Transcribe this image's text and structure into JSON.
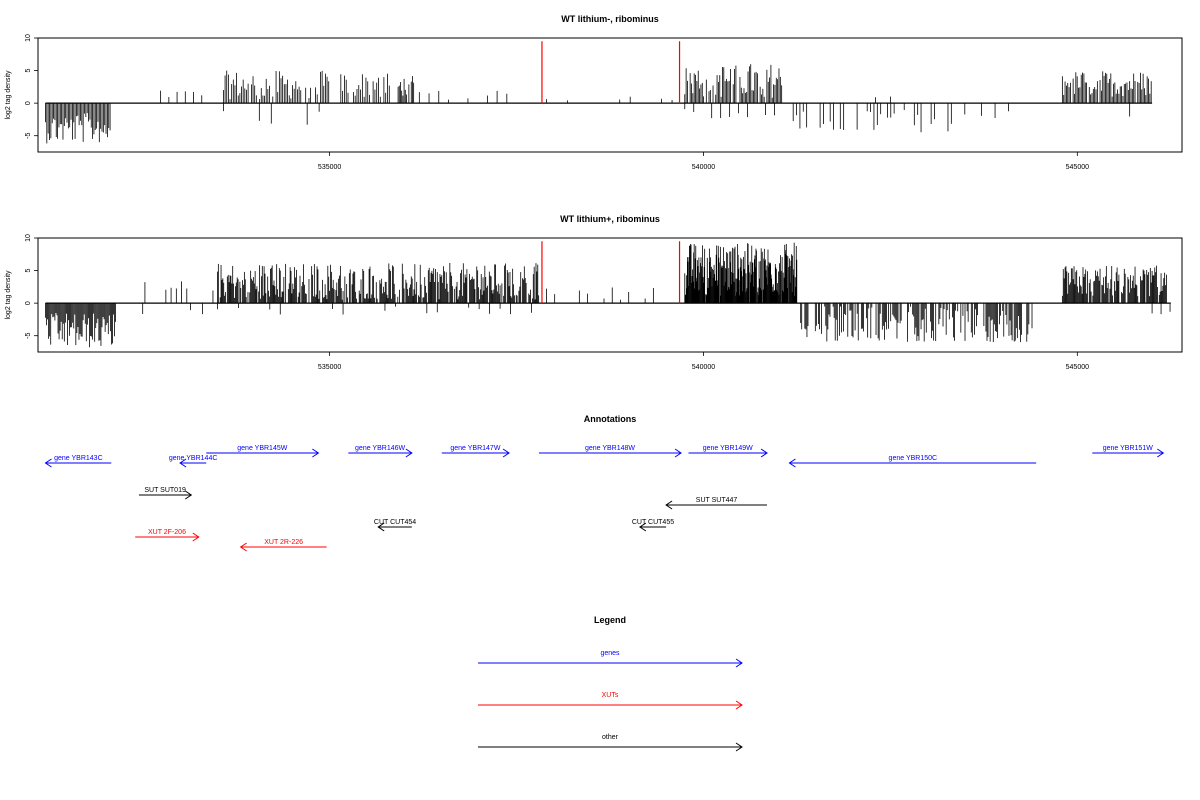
{
  "chart_data": [
    {
      "type": "bar",
      "title": "WT lithium-, ribominus",
      "xlabel": "",
      "ylabel": "log2 tag density",
      "xlim": [
        531100,
        546400
      ],
      "ylim": [
        -7.5,
        10
      ],
      "xticks": [
        535000,
        540000,
        545000
      ],
      "yticks": [
        -5,
        0,
        5,
        10
      ],
      "markers": [
        537840,
        539680
      ],
      "marker_color": "#ff0000",
      "series": [
        {
          "from": 531200,
          "to": 532080,
          "step": 18,
          "min": -6.2,
          "max": -1.5,
          "sign": -1,
          "density": 1.0
        },
        {
          "from": 532300,
          "to": 533300,
          "step": 110,
          "min": 0.6,
          "max": 2.0,
          "sign": 1,
          "density": 0.55
        },
        {
          "from": 533580,
          "to": 535000,
          "step": 22,
          "min": 0.6,
          "max": 5.0,
          "sign": 1,
          "density": 0.85
        },
        {
          "from": 533580,
          "to": 535000,
          "step": 160,
          "min": -3.6,
          "max": -1.0,
          "sign": -1,
          "density": 0.6
        },
        {
          "from": 535150,
          "to": 535800,
          "step": 24,
          "min": 0.8,
          "max": 4.8,
          "sign": 1,
          "density": 0.8
        },
        {
          "from": 535900,
          "to": 536130,
          "step": 16,
          "min": 1.0,
          "max": 4.2,
          "sign": 1,
          "density": 0.9
        },
        {
          "from": 536200,
          "to": 537800,
          "step": 130,
          "min": 0.5,
          "max": 2.0,
          "sign": 1,
          "density": 0.5
        },
        {
          "from": 537900,
          "to": 539650,
          "step": 140,
          "min": 0.4,
          "max": 1.4,
          "sign": 1,
          "density": 0.4
        },
        {
          "from": 539750,
          "to": 541050,
          "step": 18,
          "min": 0.8,
          "max": 6.2,
          "sign": 1,
          "density": 0.85
        },
        {
          "from": 539750,
          "to": 541050,
          "step": 120,
          "min": -2.5,
          "max": -0.8,
          "sign": -1,
          "density": 0.6
        },
        {
          "from": 541200,
          "to": 544200,
          "step": 45,
          "min": -4.5,
          "max": -0.6,
          "sign": -1,
          "density": 0.6
        },
        {
          "from": 542300,
          "to": 542900,
          "step": 200,
          "min": 0.6,
          "max": 1.2,
          "sign": 1,
          "density": 0.5
        },
        {
          "from": 544800,
          "to": 546000,
          "step": 18,
          "min": 1.0,
          "max": 5.0,
          "sign": 1,
          "density": 0.9
        },
        {
          "from": 545700,
          "to": 545900,
          "step": 80,
          "min": -2.8,
          "max": -1.0,
          "sign": -1,
          "density": 0.5
        }
      ]
    },
    {
      "type": "bar",
      "title": "WT lithium+, ribominus",
      "xlabel": "",
      "ylabel": "log2 tag density",
      "xlim": [
        531100,
        546400
      ],
      "ylim": [
        -7.5,
        10
      ],
      "xticks": [
        535000,
        540000,
        545000
      ],
      "yticks": [
        -5,
        0,
        5,
        10
      ],
      "markers": [
        537840,
        539680
      ],
      "marker_color": "#ff0000",
      "series": [
        {
          "from": 531200,
          "to": 532150,
          "step": 14,
          "min": -7.0,
          "max": -1.5,
          "sign": -1,
          "density": 1.0
        },
        {
          "from": 532250,
          "to": 533450,
          "step": 70,
          "min": 0.6,
          "max": 3.5,
          "sign": 1,
          "density": 0.6
        },
        {
          "from": 532500,
          "to": 533300,
          "step": 160,
          "min": -2.2,
          "max": -0.8,
          "sign": -1,
          "density": 0.5
        },
        {
          "from": 533500,
          "to": 537800,
          "step": 12,
          "min": 0.5,
          "max": 6.2,
          "sign": 1,
          "density": 0.85
        },
        {
          "from": 533500,
          "to": 537800,
          "step": 140,
          "min": -2.0,
          "max": -0.5,
          "sign": -1,
          "density": 0.5
        },
        {
          "from": 537900,
          "to": 539600,
          "step": 110,
          "min": 0.5,
          "max": 2.5,
          "sign": 1,
          "density": 0.5
        },
        {
          "from": 539750,
          "to": 541250,
          "step": 7,
          "min": 1.0,
          "max": 9.3,
          "sign": 1,
          "density": 0.95
        },
        {
          "from": 541300,
          "to": 544400,
          "step": 14,
          "min": -6.0,
          "max": -0.5,
          "sign": -1,
          "density": 0.7
        },
        {
          "from": 544800,
          "to": 546200,
          "step": 12,
          "min": 1.0,
          "max": 5.8,
          "sign": 1,
          "density": 0.9
        },
        {
          "from": 546000,
          "to": 546250,
          "step": 120,
          "min": -2.2,
          "max": -1.0,
          "sign": -1,
          "density": 0.6
        }
      ]
    }
  ],
  "annotations": {
    "title": "Annotations",
    "features": [
      {
        "label": "gene YBR143C",
        "start": 532080,
        "end": 531200,
        "type": "gene",
        "row": 2
      },
      {
        "label": "gene YBR144C",
        "start": 533350,
        "end": 533000,
        "type": "gene",
        "row": 2
      },
      {
        "label": "gene YBR145W",
        "start": 533350,
        "end": 534850,
        "type": "gene",
        "row": 1
      },
      {
        "label": "gene YBR146W",
        "start": 535250,
        "end": 536100,
        "type": "gene",
        "row": 1
      },
      {
        "label": "gene YBR147W",
        "start": 536500,
        "end": 537400,
        "type": "gene",
        "row": 1
      },
      {
        "label": "gene YBR148W",
        "start": 537800,
        "end": 539700,
        "type": "gene",
        "row": 1
      },
      {
        "label": "gene YBR149W",
        "start": 539800,
        "end": 540850,
        "type": "gene",
        "row": 1
      },
      {
        "label": "gene YBR150C",
        "start": 544450,
        "end": 541150,
        "type": "gene",
        "row": 2
      },
      {
        "label": "gene YBR151W",
        "start": 545200,
        "end": 546150,
        "type": "gene",
        "row": 1
      },
      {
        "label": "SUT SUT019",
        "start": 532450,
        "end": 533150,
        "type": "other",
        "row": 3
      },
      {
        "label": "SUT SUT447",
        "start": 540850,
        "end": 539500,
        "type": "other",
        "row": 4
      },
      {
        "label": "CUT CUT454",
        "start": 536100,
        "end": 535650,
        "type": "other",
        "row": 5
      },
      {
        "label": "CUT CUT455",
        "start": 539500,
        "end": 539150,
        "type": "other",
        "row": 5
      },
      {
        "label": "XUT 2F-206",
        "start": 532400,
        "end": 533250,
        "type": "xut",
        "row": 6
      },
      {
        "label": "XUT 2R-226",
        "start": 534960,
        "end": 533810,
        "type": "xut",
        "row": 7
      }
    ]
  },
  "legend": {
    "title": "Legend",
    "items": [
      {
        "label": "genes",
        "color": "#0000ff"
      },
      {
        "label": "XUTs",
        "color": "#ff0000"
      },
      {
        "label": "other",
        "color": "#000000"
      }
    ]
  },
  "colors": {
    "gene": "#0000ff",
    "xut": "#ff0000",
    "other": "#000000"
  }
}
